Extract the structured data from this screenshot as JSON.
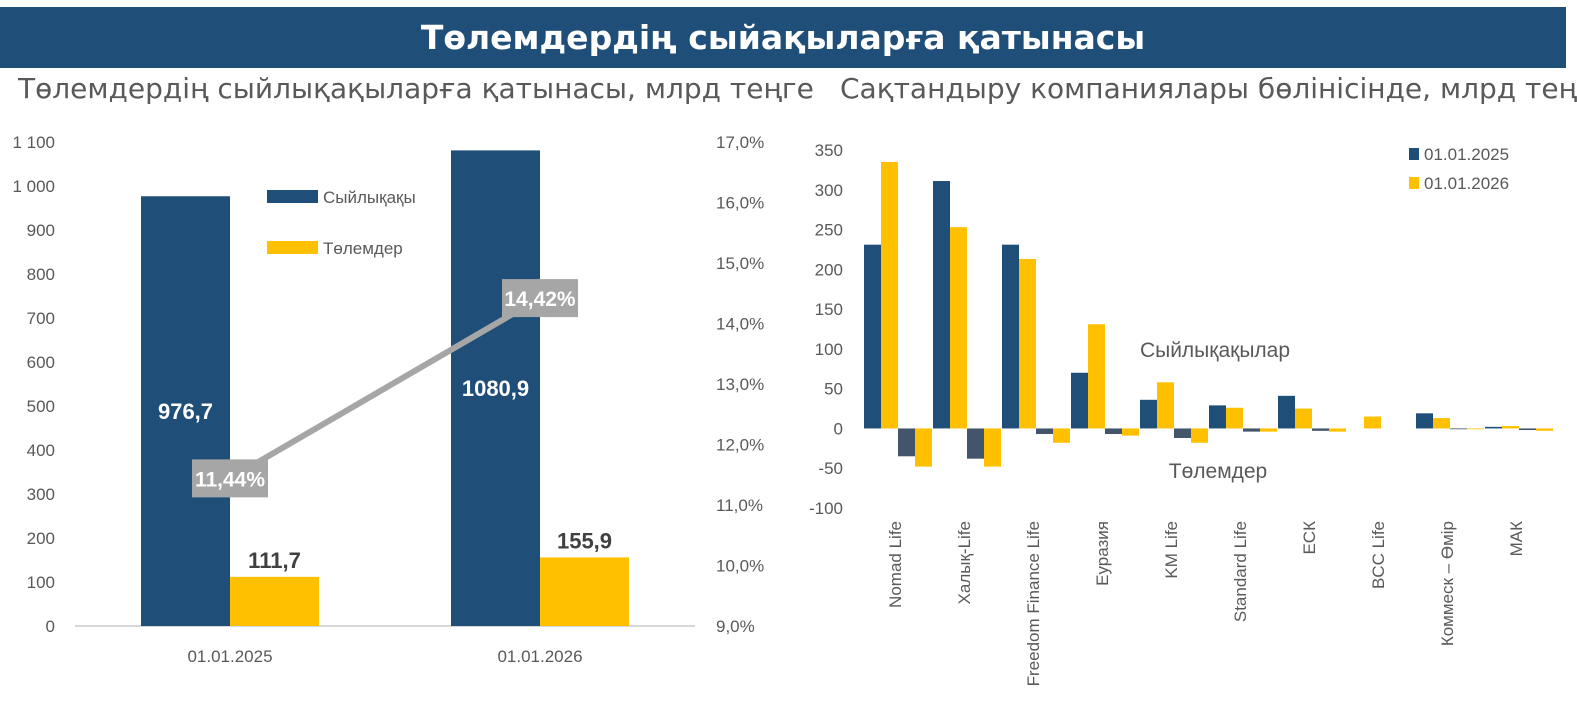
{
  "page": {
    "banner_title": "Төлемдердің сыйақыларға қатынасы"
  },
  "colors": {
    "banner": "#1f4e79",
    "premium": "#1f4e79",
    "payment": "#ffc000",
    "premium_negative": "#44546a",
    "ratio_line": "#a6a6a6",
    "axis_text": "#595959"
  },
  "chart_data": [
    {
      "type": "bar",
      "title": "Төлемдердің сыйлықақыларға қатынасы, млрд теңге",
      "categories": [
        "01.01.2025",
        "01.01.2026"
      ],
      "series": [
        {
          "name": "Сыйлықақы",
          "values": [
            976.7,
            1080.9
          ],
          "labels": [
            "976,7",
            "1080,9"
          ]
        },
        {
          "name": "Төлемдер",
          "values": [
            111.7,
            155.9
          ],
          "labels": [
            "111,7",
            "155,9"
          ]
        }
      ],
      "line_series": {
        "axis": "secondary",
        "values": [
          11.44,
          14.42
        ],
        "labels": [
          "11,44%",
          "14,42%"
        ]
      },
      "ylim": [
        0,
        1100
      ],
      "yticks": [
        0,
        100,
        200,
        300,
        400,
        500,
        600,
        700,
        800,
        900,
        1000,
        1100
      ],
      "ytick_labels": [
        "0",
        "100",
        "200",
        "300",
        "400",
        "500",
        "600",
        "700",
        "800",
        "900",
        "1 000",
        "1 100"
      ],
      "y2lim": [
        9,
        17
      ],
      "y2ticks": [
        9,
        10,
        11,
        12,
        13,
        14,
        15,
        16,
        17
      ],
      "y2tick_labels": [
        "9,0%",
        "10,0%",
        "11,0%",
        "12,0%",
        "13,0%",
        "14,0%",
        "15,0%",
        "16,0%",
        "17,0%"
      ],
      "legend": "inside-top-center",
      "grid": false
    },
    {
      "type": "bar",
      "title": "Сақтандыру компаниялары бөлінісінде, млрд теңге",
      "categories": [
        "Nomad Life",
        "Халық-Life",
        "Freedom Finance Life",
        "Еуразия",
        "KM Life",
        "Standard Life",
        "ЕСК",
        "BCC Life",
        "Коммеск – Өмір",
        "МАК"
      ],
      "series": [
        {
          "name": "01.01.2025",
          "role": "Сыйлықақылар",
          "values": [
            231,
            311,
            231,
            70,
            36,
            29,
            41,
            0,
            19,
            2
          ]
        },
        {
          "name": "01.01.2026",
          "role": "Сыйлықақылар",
          "values": [
            335,
            253,
            213,
            131,
            58,
            26,
            25,
            15,
            13,
            3
          ]
        },
        {
          "name": "01.01.2025",
          "role": "Төлемдер",
          "values": [
            -35,
            -38,
            -7,
            -7,
            -12,
            -4,
            -3,
            0,
            -1,
            -2
          ]
        },
        {
          "name": "01.01.2026",
          "role": "Төлемдер",
          "values": [
            -48,
            -48,
            -18,
            -9,
            -18,
            -4,
            -4,
            0,
            -1,
            -3
          ]
        }
      ],
      "annotations": [
        "Сыйлықақылар",
        "Төлемдер"
      ],
      "ylim": [
        -100,
        350
      ],
      "yticks": [
        -100,
        -50,
        0,
        50,
        100,
        150,
        200,
        250,
        300,
        350
      ],
      "legend": "top-right",
      "grid": false
    }
  ]
}
